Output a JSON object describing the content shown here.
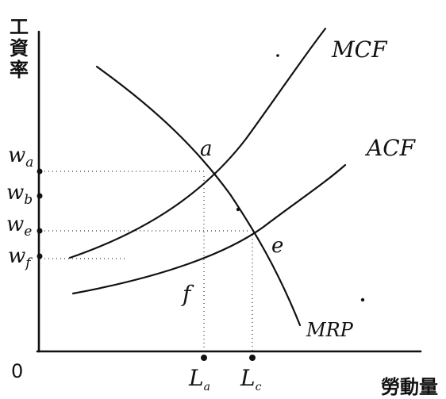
{
  "diagram": {
    "y_axis_title": "工資率",
    "x_axis_title": "勞動量",
    "origin_label": "0",
    "curves": {
      "mcf": "MCF",
      "acf": "ACF",
      "mrp": "MRP"
    },
    "points": {
      "a": "a",
      "e": "e",
      "f": "f"
    },
    "wage_levels": [
      "w_a",
      "w_b",
      "w_e",
      "w_f"
    ],
    "labor_levels": [
      "L_a",
      "L_c"
    ]
  }
}
